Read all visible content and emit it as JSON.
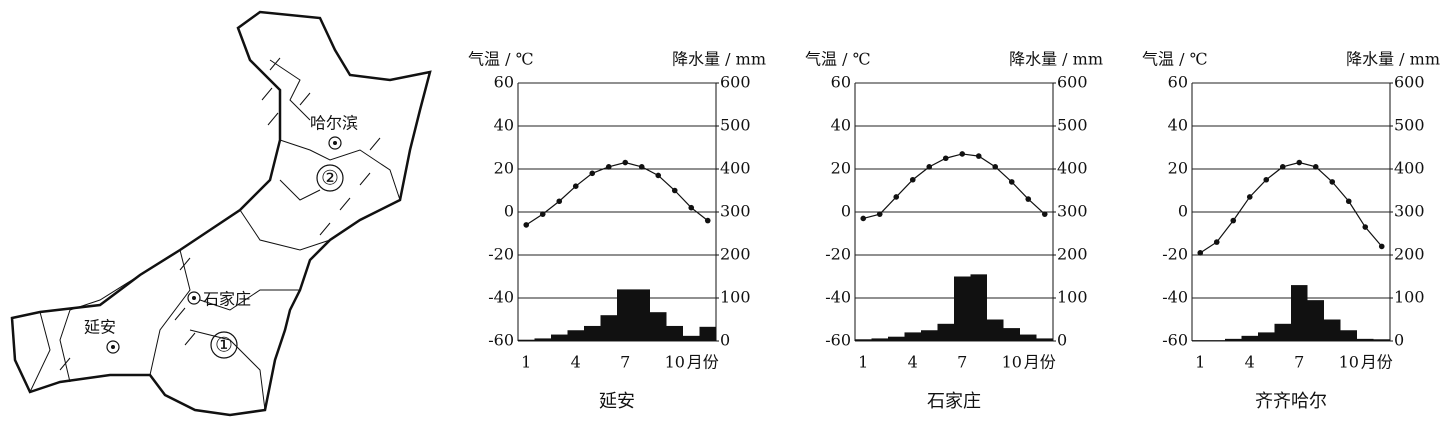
{
  "map": {
    "labels": [
      "哈尔滨",
      "石家庄",
      "延安",
      "①",
      "②"
    ]
  },
  "chart_data": [
    {
      "type": "climate",
      "title": "延安",
      "y_label": "气温 / ℃",
      "y2_label": "降水量 / mm",
      "x_label": "月份",
      "categories": [
        "1",
        null,
        null,
        "4",
        null,
        null,
        "7",
        null,
        null,
        "10",
        null,
        null
      ],
      "ylim": [
        -60,
        60
      ],
      "yticks": [
        -60,
        -40,
        -20,
        0,
        20,
        40,
        60
      ],
      "y2lim": [
        0,
        600
      ],
      "y2ticks": [
        0,
        100,
        200,
        300,
        400,
        500,
        600
      ],
      "grid": true,
      "series": [
        {
          "color": "#111111",
          "axis": "y",
          "values": [
            -6,
            -1,
            5,
            12,
            18,
            21,
            23,
            21,
            17,
            10,
            2,
            -4
          ]
        },
        {
          "color": "#111111",
          "axis": "y2",
          "values": [
            3,
            6,
            15,
            25,
            35,
            60,
            120,
            120,
            67,
            35,
            12,
            33
          ]
        }
      ]
    },
    {
      "type": "climate",
      "title": "石家庄",
      "y_label": "气温 / ℃",
      "y2_label": "降水量 / mm",
      "x_label": "月份",
      "categories": [
        "1",
        null,
        null,
        "4",
        null,
        null,
        "7",
        null,
        null,
        "10",
        null,
        null
      ],
      "ylim": [
        -60,
        60
      ],
      "yticks": [
        -60,
        -40,
        -20,
        0,
        20,
        40,
        60
      ],
      "y2lim": [
        0,
        600
      ],
      "y2ticks": [
        0,
        100,
        200,
        300,
        400,
        500,
        600
      ],
      "grid": true,
      "series": [
        {
          "color": "#111111",
          "axis": "y",
          "values": [
            -3,
            -1,
            7,
            15,
            21,
            25,
            27,
            26,
            21,
            14,
            6,
            -1
          ]
        },
        {
          "color": "#111111",
          "axis": "y2",
          "values": [
            4,
            6,
            10,
            20,
            25,
            40,
            150,
            155,
            50,
            30,
            15,
            6
          ]
        }
      ]
    },
    {
      "type": "climate",
      "title": "齐齐哈尔",
      "y_label": "气温 / ℃",
      "y2_label": "降水量 / mm",
      "x_label": "月份",
      "categories": [
        "1",
        null,
        null,
        "4",
        null,
        null,
        "7",
        null,
        null,
        "10",
        null,
        null
      ],
      "ylim": [
        -60,
        60
      ],
      "yticks": [
        -60,
        -40,
        -20,
        0,
        20,
        40,
        60
      ],
      "y2lim": [
        0,
        600
      ],
      "y2ticks": [
        0,
        100,
        200,
        300,
        400,
        500,
        600
      ],
      "grid": true,
      "series": [
        {
          "color": "#111111",
          "axis": "y",
          "values": [
            -19,
            -14,
            -4,
            7,
            15,
            21,
            23,
            21,
            14,
            5,
            -7,
            -16
          ]
        },
        {
          "color": "#111111",
          "axis": "y2",
          "values": [
            2,
            2,
            5,
            12,
            20,
            40,
            130,
            95,
            50,
            25,
            5,
            4
          ]
        }
      ]
    }
  ]
}
